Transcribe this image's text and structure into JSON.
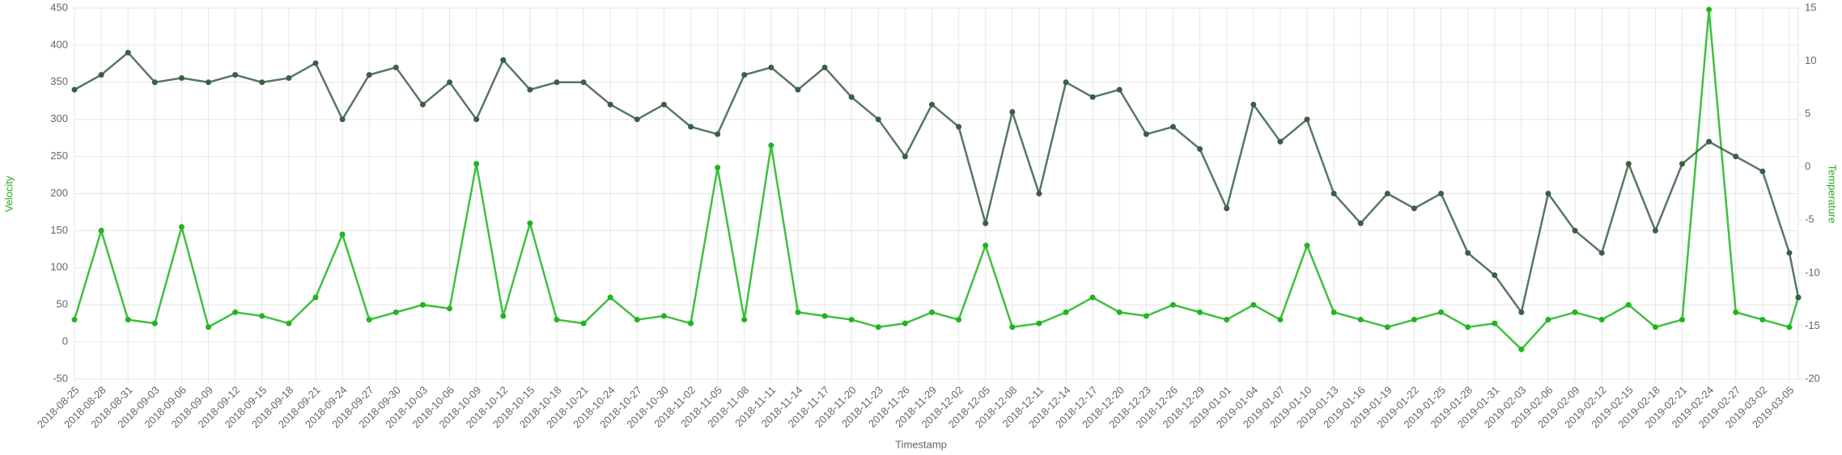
{
  "chart_data": {
    "type": "line",
    "x_label": "Timestamp",
    "y_label": "Velocity",
    "y2_label": "Temperature",
    "x": [
      "2018-08-25",
      "2018-08-28",
      "2018-08-31",
      "2018-09-03",
      "2018-09-06",
      "2018-09-09",
      "2018-09-12",
      "2018-09-15",
      "2018-09-18",
      "2018-09-21",
      "2018-09-24",
      "2018-09-27",
      "2018-09-30",
      "2018-10-03",
      "2018-10-06",
      "2018-10-09",
      "2018-10-12",
      "2018-10-15",
      "2018-10-18",
      "2018-10-21",
      "2018-10-24",
      "2018-10-27",
      "2018-10-30",
      "2018-11-02",
      "2018-11-05",
      "2018-11-08",
      "2018-11-11",
      "2018-11-14",
      "2018-11-17",
      "2018-11-20",
      "2018-11-23",
      "2018-11-26",
      "2018-11-29",
      "2018-12-02",
      "2018-12-05",
      "2018-12-08",
      "2018-12-11",
      "2018-12-14",
      "2018-12-17",
      "2018-12-20",
      "2018-12-23",
      "2018-12-26",
      "2018-12-29",
      "2019-01-01",
      "2019-01-04",
      "2019-01-07",
      "2019-01-10",
      "2019-01-13",
      "2019-01-16",
      "2019-01-19",
      "2019-01-22",
      "2019-01-25",
      "2019-01-28",
      "2019-01-31",
      "2019-02-03",
      "2019-02-06",
      "2019-02-09",
      "2019-02-12",
      "2019-02-15",
      "2019-02-18",
      "2019-02-21",
      "2019-02-24",
      "2019-02-27",
      "2019-03-02",
      "2019-03-05",
      "2019-03-06"
    ],
    "series": [
      {
        "name": "Velocity",
        "color": "#1fb51f",
        "axis": "y",
        "values": [
          30,
          150,
          30,
          25,
          155,
          20,
          40,
          35,
          25,
          60,
          145,
          30,
          40,
          50,
          45,
          240,
          35,
          160,
          30,
          25,
          60,
          30,
          35,
          25,
          235,
          30,
          265,
          40,
          35,
          30,
          20,
          25,
          40,
          30,
          130,
          20,
          25,
          40,
          60,
          40,
          35,
          50,
          40,
          30,
          50,
          30,
          130,
          40,
          30,
          20,
          30,
          40,
          20,
          25,
          -10,
          30,
          40,
          30,
          50,
          20,
          30,
          448,
          40,
          30,
          20,
          60
        ]
      },
      {
        "name": "Temperature",
        "color": "#3a5f45",
        "axis": "y2",
        "values": [
          7.3,
          8.7,
          10.8,
          8,
          8.4,
          8,
          8.7,
          8,
          8.4,
          9.8,
          4.5,
          8.7,
          9.4,
          5.9,
          8,
          4.5,
          10.1,
          7.3,
          8,
          8,
          5.9,
          4.5,
          5.9,
          3.8,
          3.1,
          8.7,
          9.4,
          7.3,
          9.4,
          6.6,
          4.5,
          1,
          5.9,
          3.8,
          -5.3,
          5.2,
          -2.5,
          8,
          6.6,
          7.3,
          3.1,
          3.8,
          1.7,
          -3.9,
          5.9,
          2.4,
          4.5,
          -2.5,
          -5.3,
          -2.5,
          -3.9,
          -2.5,
          -8.1,
          -10.2,
          -13.7,
          -2.5,
          -6,
          -8.1,
          0.3,
          -6,
          0.3,
          2.4,
          1,
          -0.4,
          -8.1,
          -12.3
        ]
      }
    ],
    "xlim": [
      "2018-08-25",
      "2019-03-06"
    ],
    "xticks": [
      "2018-08-25",
      "2018-08-28",
      "2018-08-31",
      "2018-09-03",
      "2018-09-06",
      "2018-09-09",
      "2018-09-12",
      "2018-09-15",
      "2018-09-18",
      "2018-09-21",
      "2018-09-24",
      "2018-09-27",
      "2018-09-30",
      "2018-10-03",
      "2018-10-06",
      "2018-10-09",
      "2018-10-12",
      "2018-10-15",
      "2018-10-18",
      "2018-10-21",
      "2018-10-24",
      "2018-10-27",
      "2018-10-30",
      "2018-11-02",
      "2018-11-05",
      "2018-11-08",
      "2018-11-11",
      "2018-11-14",
      "2018-11-17",
      "2018-11-20",
      "2018-11-23",
      "2018-11-26",
      "2018-11-29",
      "2018-12-02",
      "2018-12-05",
      "2018-12-08",
      "2018-12-11",
      "2018-12-14",
      "2018-12-17",
      "2018-12-20",
      "2018-12-23",
      "2018-12-26",
      "2018-12-29",
      "2019-01-01",
      "2019-01-04",
      "2019-01-07",
      "2019-01-10",
      "2019-01-13",
      "2019-01-16",
      "2019-01-19",
      "2019-01-22",
      "2019-01-25",
      "2019-01-28",
      "2019-01-31",
      "2019-02-03",
      "2019-02-06",
      "2019-02-09",
      "2019-02-12",
      "2019-02-15",
      "2019-02-18",
      "2019-02-21",
      "2019-02-24",
      "2019-02-27",
      "2019-03-02",
      "2019-03-05"
    ],
    "ylim": [
      -50,
      450
    ],
    "yticks": [
      -50,
      0,
      50,
      100,
      150,
      200,
      250,
      300,
      350,
      400,
      450
    ],
    "y2lim": [
      -20,
      15
    ],
    "y2ticks": [
      -20,
      -15,
      -10,
      -5,
      0,
      5,
      10,
      15
    ],
    "grid": true
  }
}
